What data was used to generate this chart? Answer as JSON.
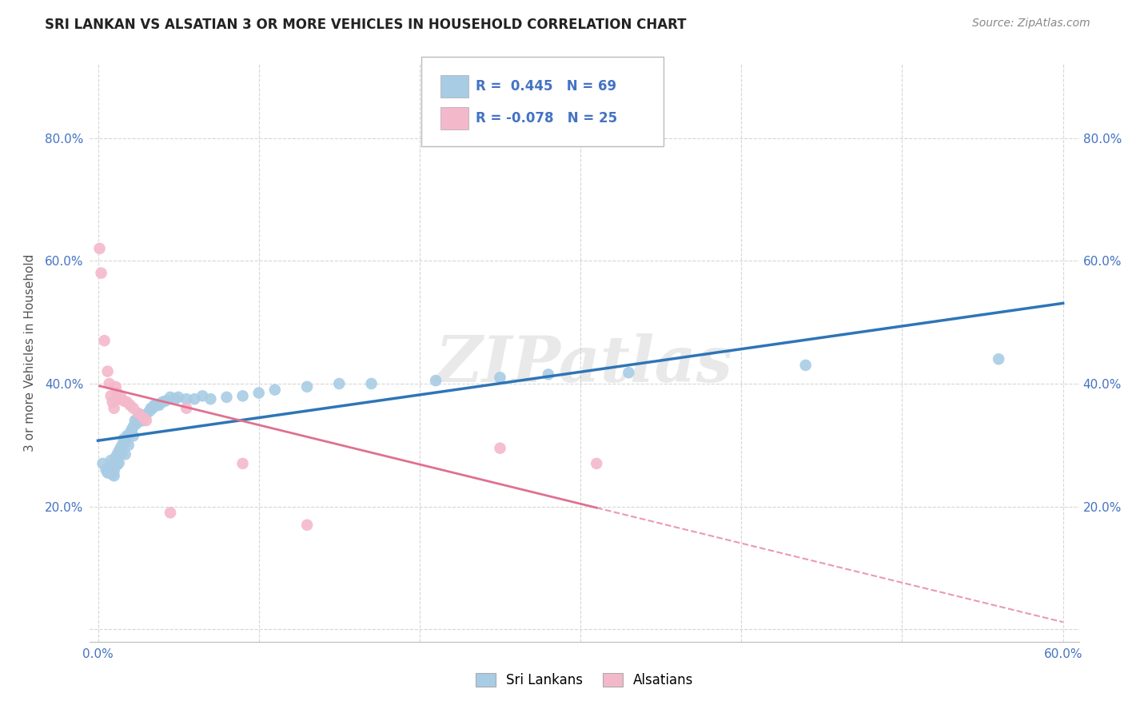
{
  "title": "SRI LANKAN VS ALSATIAN 3 OR MORE VEHICLES IN HOUSEHOLD CORRELATION CHART",
  "source": "Source: ZipAtlas.com",
  "ylabel": "3 or more Vehicles in Household",
  "xlim": [
    -0.005,
    0.61
  ],
  "ylim": [
    -0.02,
    0.92
  ],
  "x_ticks": [
    0.0,
    0.1,
    0.2,
    0.3,
    0.4,
    0.5,
    0.6
  ],
  "x_ticklabels": [
    "0.0%",
    "",
    "",
    "",
    "",
    "",
    "60.0%"
  ],
  "y_ticks": [
    0.0,
    0.2,
    0.4,
    0.6,
    0.8
  ],
  "y_ticklabels": [
    "",
    "20.0%",
    "40.0%",
    "60.0%",
    "80.0%"
  ],
  "sri_lankan_x": [
    0.003,
    0.005,
    0.006,
    0.007,
    0.007,
    0.008,
    0.008,
    0.008,
    0.009,
    0.009,
    0.01,
    0.01,
    0.01,
    0.01,
    0.011,
    0.011,
    0.012,
    0.012,
    0.012,
    0.013,
    0.013,
    0.013,
    0.014,
    0.015,
    0.015,
    0.016,
    0.017,
    0.017,
    0.018,
    0.019,
    0.02,
    0.021,
    0.022,
    0.022,
    0.023,
    0.024,
    0.025,
    0.026,
    0.027,
    0.028,
    0.03,
    0.032,
    0.033,
    0.034,
    0.035,
    0.036,
    0.038,
    0.04,
    0.042,
    0.045,
    0.048,
    0.05,
    0.055,
    0.06,
    0.065,
    0.07,
    0.08,
    0.09,
    0.1,
    0.11,
    0.13,
    0.15,
    0.17,
    0.21,
    0.25,
    0.28,
    0.33,
    0.44,
    0.56
  ],
  "sri_lankan_y": [
    0.27,
    0.26,
    0.255,
    0.265,
    0.255,
    0.275,
    0.265,
    0.258,
    0.26,
    0.252,
    0.27,
    0.265,
    0.258,
    0.25,
    0.28,
    0.272,
    0.285,
    0.278,
    0.268,
    0.29,
    0.282,
    0.271,
    0.295,
    0.3,
    0.288,
    0.31,
    0.305,
    0.285,
    0.315,
    0.3,
    0.32,
    0.325,
    0.33,
    0.315,
    0.34,
    0.335,
    0.345,
    0.35,
    0.34,
    0.34,
    0.35,
    0.355,
    0.36,
    0.36,
    0.365,
    0.365,
    0.365,
    0.37,
    0.372,
    0.378,
    0.375,
    0.378,
    0.375,
    0.375,
    0.38,
    0.375,
    0.378,
    0.38,
    0.385,
    0.39,
    0.395,
    0.4,
    0.4,
    0.405,
    0.41,
    0.415,
    0.418,
    0.43,
    0.44
  ],
  "alsatian_x": [
    0.001,
    0.002,
    0.004,
    0.006,
    0.007,
    0.008,
    0.009,
    0.01,
    0.011,
    0.012,
    0.013,
    0.014,
    0.016,
    0.018,
    0.02,
    0.022,
    0.025,
    0.028,
    0.03,
    0.045,
    0.055,
    0.09,
    0.13,
    0.25,
    0.31
  ],
  "alsatian_y": [
    0.62,
    0.58,
    0.47,
    0.42,
    0.4,
    0.38,
    0.37,
    0.36,
    0.395,
    0.385,
    0.375,
    0.38,
    0.372,
    0.37,
    0.365,
    0.36,
    0.352,
    0.345,
    0.34,
    0.19,
    0.36,
    0.27,
    0.17,
    0.295,
    0.27
  ],
  "sri_r": 0.445,
  "sri_n": 69,
  "als_r": -0.078,
  "als_n": 25,
  "sri_color": "#a8cce4",
  "als_color": "#f4b8cb",
  "sri_line_color": "#2e75b6",
  "als_line_color": "#e07090",
  "watermark_text": "ZIPatlas",
  "background_color": "#ffffff",
  "grid_color": "#cccccc",
  "tick_color": "#4472c4"
}
